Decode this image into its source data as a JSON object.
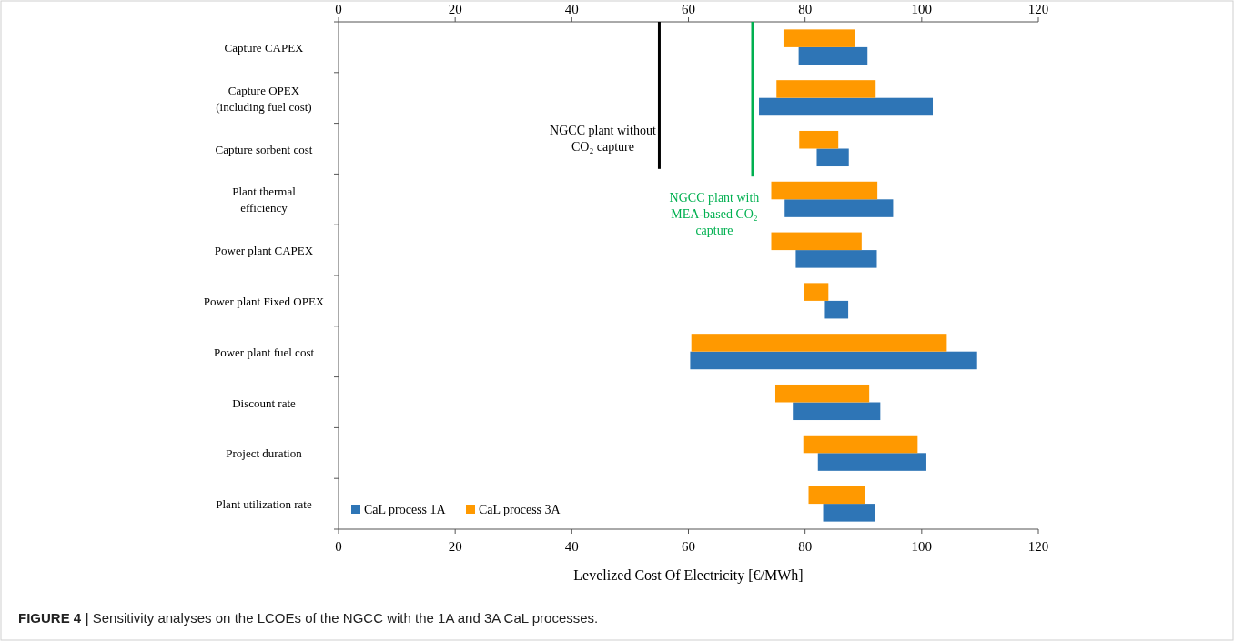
{
  "chart_data": {
    "type": "bar",
    "orientation": "horizontal",
    "categories": [
      "Capture CAPEX",
      "Capture OPEX (including fuel cost)",
      "Capture sorbent cost",
      "Plant thermal efficiency",
      "Power plant CAPEX",
      "Power plant Fixed OPEX",
      "Power plant fuel cost",
      "Discount rate",
      "Project duration",
      "Plant utilization rate"
    ],
    "series": [
      {
        "name": "CaL process 1A",
        "color": "#2e75b6",
        "base": [
          78.9,
          72.1,
          82.0,
          76.5,
          78.4,
          83.4,
          60.3,
          77.9,
          82.2,
          83.1
        ],
        "values": [
          11.8,
          29.8,
          5.5,
          18.6,
          13.9,
          4.0,
          49.2,
          15.0,
          18.6,
          8.9
        ]
      },
      {
        "name": "CaL process 3A",
        "color": "#ff9900",
        "base": [
          76.3,
          75.1,
          79.0,
          74.2,
          74.2,
          79.8,
          60.5,
          74.9,
          79.7,
          80.6
        ],
        "values": [
          12.2,
          17.0,
          6.7,
          18.2,
          15.5,
          4.2,
          43.8,
          16.1,
          19.6,
          9.6
        ]
      }
    ],
    "xlabel": "Levelized Cost Of Electricity  [€/MWh]",
    "xlim": [
      0,
      120
    ],
    "xticks": [
      0,
      20,
      40,
      60,
      80,
      100,
      120
    ],
    "x2lim": [
      0,
      120
    ],
    "x2ticks": [
      0,
      20,
      40,
      60,
      80,
      100,
      120
    ],
    "ref_lines": [
      {
        "axis": "x",
        "value": 55,
        "label": "NGCC plant without CO₂ capture",
        "color": "#000000"
      },
      {
        "axis": "x",
        "value": 71,
        "label": "NGCC plant with MEA-based CO₂ capture",
        "color": "#00b050"
      }
    ],
    "legend": "bottom left",
    "annotations": [
      "FIGURE 4 | Sensitivity analyses on the LCOEs of the NGCC with the 1A and 3A CaL processes."
    ]
  }
}
